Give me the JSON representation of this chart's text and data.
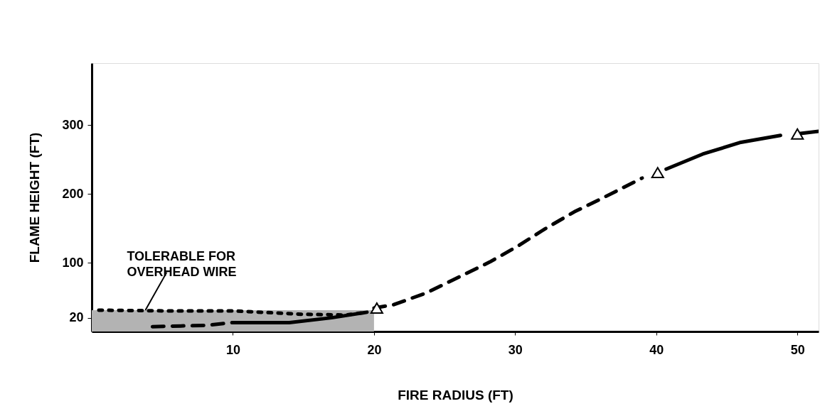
{
  "chart_data": {
    "type": "line",
    "xlabel": "FIRE RADIUS (FT)",
    "ylabel": "FLAME HEIGHT (FT)",
    "xlim": [
      0,
      51.5
    ],
    "xticks": [
      10,
      20,
      30,
      40,
      50
    ],
    "ylim": [
      0,
      390
    ],
    "yticks": [
      20,
      100,
      200,
      300
    ],
    "series": [
      {
        "type": "area",
        "color": "#b3b3b3",
        "x": [
          0,
          20
        ],
        "values": [
          31,
          31
        ]
      },
      {
        "color": "#000000",
        "line_style": "dotted",
        "x": [
          0.5,
          5,
          10,
          15,
          18,
          19.5
        ],
        "values": [
          31,
          30,
          30,
          25,
          24,
          28
        ]
      },
      {
        "color": "#000000",
        "line_style": "dashed",
        "x": [
          4.3,
          8.2,
          10
        ],
        "values": [
          7,
          9,
          13
        ]
      },
      {
        "color": "#000000",
        "line_style": "solid",
        "x": [
          10,
          14,
          17,
          19.5
        ],
        "values": [
          13,
          13,
          20,
          28
        ]
      },
      {
        "color": "#000000",
        "line_style": "dashed",
        "x": [
          20,
          21.4,
          23.7,
          26.4,
          28.2,
          30.1,
          32.1,
          34.2,
          36.2,
          39
        ],
        "values": [
          34,
          39,
          56,
          83,
          101,
          123,
          149,
          174,
          194,
          223
        ]
      },
      {
        "color": "#000000",
        "line_style": "solid",
        "x": [
          40.7,
          43.3,
          46,
          48.8
        ],
        "values": [
          236,
          258,
          275,
          285
        ]
      },
      {
        "color": "#000000",
        "line_style": "solid",
        "x": [
          49.9,
          51.5
        ],
        "values": [
          287,
          291
        ]
      },
      {
        "type": "scatter",
        "color": "#000000",
        "marker": "triangle",
        "x": [
          20.2,
          40.1,
          50
        ],
        "values": [
          34,
          231,
          287
        ]
      }
    ],
    "annotations": [
      {
        "text": "TOLERABLE FOR\nOVERHEAD WIRE",
        "x": 3.8,
        "y": 31
      }
    ]
  }
}
